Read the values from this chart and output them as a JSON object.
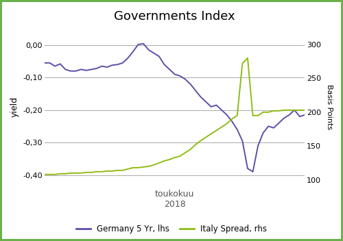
{
  "title": "Governments Index",
  "xlabel_line1": "toukokuu",
  "xlabel_line2": "2018",
  "ylabel_left": "yield",
  "ylabel_right": "Basis Points",
  "ylim_left": [
    -0.44,
    0.06
  ],
  "ylim_right": [
    88,
    328
  ],
  "yticks_left": [
    0.0,
    -0.1,
    -0.2,
    -0.3,
    -0.4
  ],
  "ytick_labels_left": [
    "0,00",
    "-0,10",
    "-0,20",
    "-0,30",
    "-0,40"
  ],
  "yticks_right": [
    100,
    150,
    200,
    250,
    300
  ],
  "background_color": "#ffffff",
  "border_color": "#6ab04c",
  "grid_color": "#b0b0b0",
  "germany_color": "#5b4fa8",
  "italy_color": "#8fbc14",
  "legend_label_germany": "Germany 5 Yr, lhs",
  "legend_label_italy": "Italy Spread, rhs",
  "title_fontsize": 13,
  "xlabel_color": "#555555",
  "germany_y": [
    -0.055,
    -0.055,
    -0.065,
    -0.058,
    -0.075,
    -0.08,
    -0.08,
    -0.075,
    -0.078,
    -0.075,
    -0.072,
    -0.065,
    -0.068,
    -0.062,
    -0.06,
    -0.055,
    -0.04,
    -0.02,
    0.002,
    0.004,
    -0.015,
    -0.025,
    -0.035,
    -0.06,
    -0.075,
    -0.09,
    -0.095,
    -0.105,
    -0.12,
    -0.14,
    -0.16,
    -0.175,
    -0.19,
    -0.185,
    -0.2,
    -0.215,
    -0.235,
    -0.26,
    -0.295,
    -0.38,
    -0.39,
    -0.31,
    -0.27,
    -0.25,
    -0.255,
    -0.24,
    -0.225,
    -0.215,
    -0.2,
    -0.22,
    -0.215
  ],
  "italy_y": [
    108,
    108,
    108,
    109,
    109,
    110,
    110,
    110,
    111,
    111,
    112,
    112,
    113,
    113,
    114,
    114,
    116,
    118,
    118,
    119,
    120,
    122,
    125,
    128,
    130,
    133,
    135,
    140,
    145,
    152,
    158,
    163,
    168,
    173,
    178,
    183,
    190,
    195,
    272,
    280,
    195,
    195,
    200,
    200,
    202,
    202,
    203,
    203,
    203,
    203,
    203
  ],
  "n_points": 51
}
